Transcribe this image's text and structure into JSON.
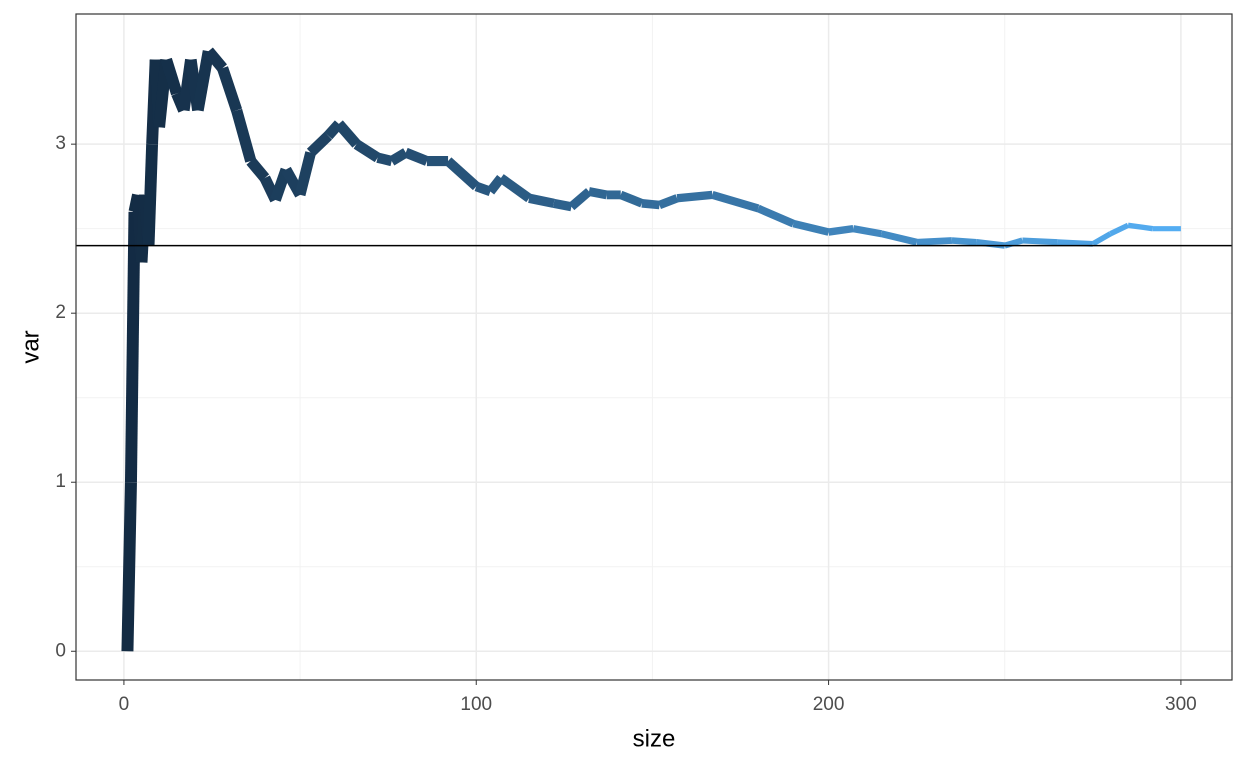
{
  "chart_data": {
    "type": "line",
    "x_label": "size",
    "y_label": "var",
    "x": [
      1,
      2,
      3,
      4,
      5,
      6,
      7,
      8,
      9,
      10,
      12,
      15,
      17,
      19,
      21,
      24,
      28,
      32,
      36,
      40,
      43,
      46,
      50,
      53,
      58,
      61,
      66,
      72,
      76,
      80,
      86,
      92,
      100,
      104,
      107,
      115,
      122,
      127,
      132,
      137,
      141,
      147,
      152,
      157,
      167,
      180,
      190,
      200,
      207,
      215,
      225,
      235,
      242,
      250,
      255,
      265,
      275,
      280,
      285,
      292,
      300
    ],
    "values": [
      0,
      1.0,
      2.6,
      2.7,
      2.3,
      2.7,
      2.4,
      3.0,
      3.5,
      3.1,
      3.5,
      3.3,
      3.2,
      3.5,
      3.2,
      3.55,
      3.45,
      3.2,
      2.9,
      2.8,
      2.67,
      2.85,
      2.7,
      2.95,
      3.05,
      3.12,
      3.0,
      2.92,
      2.9,
      2.95,
      2.9,
      2.9,
      2.75,
      2.72,
      2.8,
      2.68,
      2.65,
      2.63,
      2.72,
      2.7,
      2.7,
      2.65,
      2.64,
      2.68,
      2.7,
      2.62,
      2.53,
      2.48,
      2.5,
      2.47,
      2.42,
      2.43,
      2.42,
      2.4,
      2.43,
      2.42,
      2.41,
      2.47,
      2.52,
      2.5,
      2.5
    ],
    "color_scale": [
      "#132B43",
      "#56B1F7"
    ],
    "hline": 2.4,
    "xlim": [
      -13.6,
      314.5
    ],
    "ylim": [
      -0.17,
      3.77
    ],
    "xticks": [
      0,
      100,
      200,
      300
    ],
    "yticks": [
      0,
      1,
      2,
      3
    ],
    "grid": true
  }
}
